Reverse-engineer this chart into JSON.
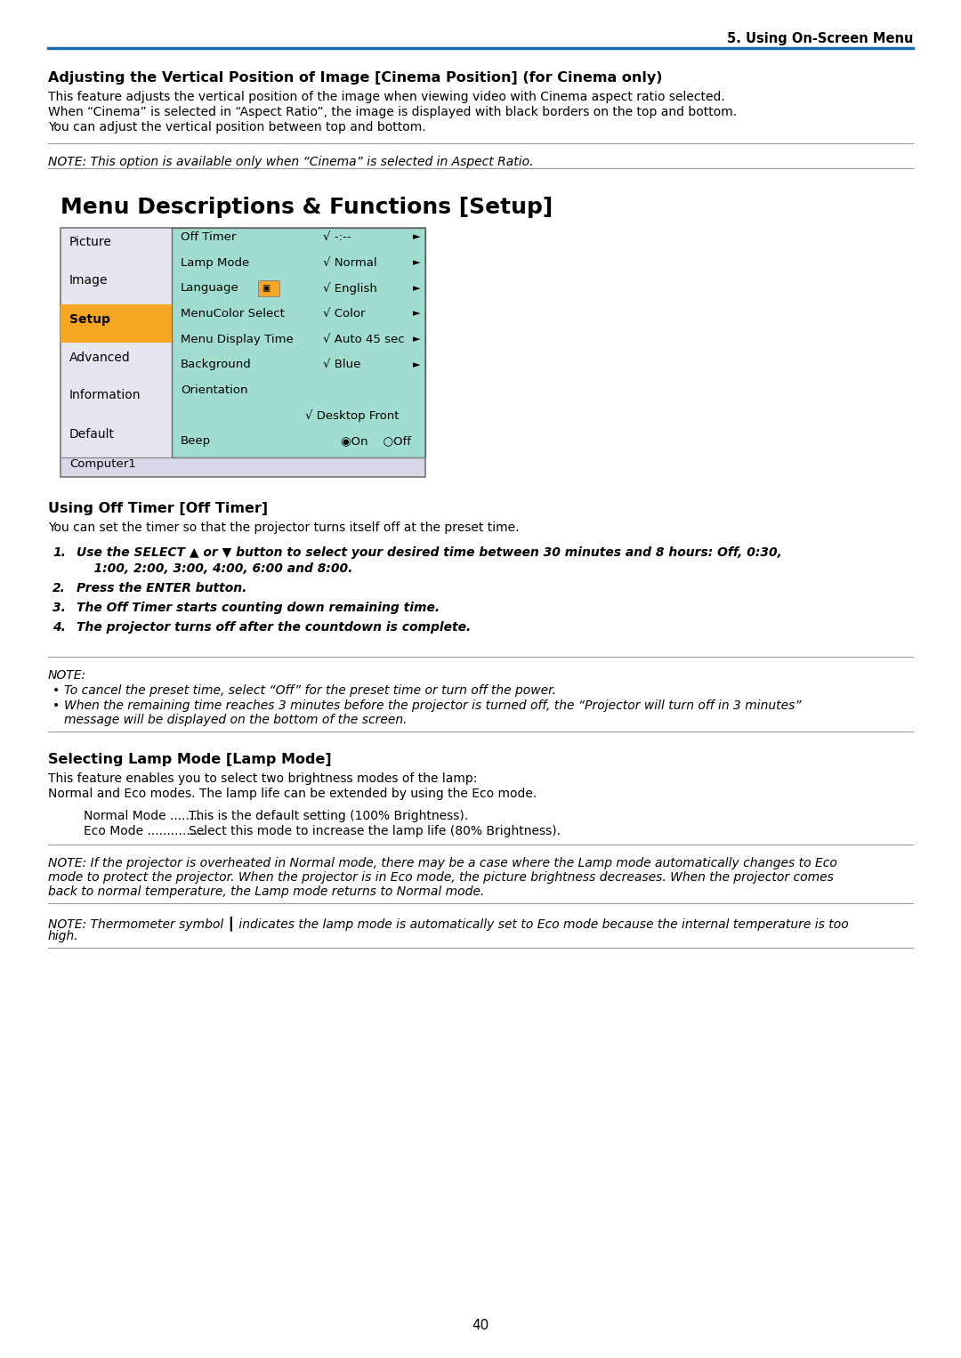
{
  "page_number": "40",
  "header_right": "5. Using On-Screen Menu",
  "header_line_color": "#1a6bb5",
  "bg_color": "#ffffff",
  "section1_title": "Adjusting the Vertical Position of Image [Cinema Position] (for Cinema only)",
  "section1_body_lines": [
    "This feature adjusts the vertical position of the image when viewing video with Cinema aspect ratio selected.",
    "When “Cinema” is selected in “Aspect Ratio”, the image is displayed with black borders on the top and bottom.",
    "You can adjust the vertical position between top and bottom."
  ],
  "note1_italic": "NOTE: This option is available only when “Cinema” is selected in Aspect Ratio.",
  "section2_title": "Menu Descriptions & Functions [Setup]",
  "menu_left_bg": "#e8e8f0",
  "menu_right_bg": "#a8e8d8",
  "menu_selected_bg": "#f5a623",
  "menu_border_color": "#888888",
  "menu_bottom_bg": "#d8d8e8",
  "menu_left_items": [
    "Picture",
    "Image",
    "Setup",
    "Advanced",
    "Information",
    "Default"
  ],
  "menu_selected_item": "Setup",
  "menu_right_items": [
    [
      "Off Timer",
      "√ -:--",
      true
    ],
    [
      "Lamp Mode",
      "√ Normal",
      true
    ],
    [
      "Language",
      "√ English",
      true
    ],
    [
      "MenuColor Select",
      "√ Color",
      true
    ],
    [
      "Menu Display Time",
      "√ Auto 45 sec",
      true
    ],
    [
      "Background",
      "√ Blue",
      true
    ],
    [
      "Orientation",
      "",
      false
    ],
    [
      "",
      "√ Desktop Front",
      true
    ],
    [
      "Beep",
      "◉On    ○Off",
      false
    ]
  ],
  "menu_bottom_label": "Computer1",
  "section3_title": "Using Off Timer [Off Timer]",
  "section3_body": "You can set the timer so that the projector turns itself off at the preset time.",
  "section3_steps": [
    "Use the SELECT ▲ or ▼ button to select your desired time between 30 minutes and 8 hours: Off, 0:30,",
    "    1:00, 2:00, 3:00, 4:00, 6:00 and 8:00.",
    "Press the ENTER button.",
    "The Off Timer starts counting down remaining time.",
    "The projector turns off after the countdown is complete."
  ],
  "note2_header": "NOTE:",
  "note2_bullet1": "To cancel the preset time, select “Off” for the preset time or turn off the power.",
  "note2_bullet2_lines": [
    "When the remaining time reaches 3 minutes before the projector is turned off, the “Projector will turn off in 3 minutes”",
    "message will be displayed on the bottom of the screen."
  ],
  "section4_title": "Selecting Lamp Mode [Lamp Mode]",
  "section4_body_lines": [
    "This feature enables you to select two brightness modes of the lamp:",
    "Normal and Eco modes. The lamp life can be extended by using the Eco mode."
  ],
  "section4_mode1_label": "Normal Mode ........",
  "section4_mode1_desc": "This is the default setting (100% Brightness).",
  "section4_mode2_label": "Eco Mode ...............",
  "section4_mode2_desc": "Select this mode to increase the lamp life (80% Brightness).",
  "note3_lines": [
    "NOTE: If the projector is overheated in Normal mode, there may be a case where the Lamp mode automatically changes to Eco",
    "mode to protect the projector. When the projector is in Eco mode, the picture brightness decreases. When the projector comes",
    "back to normal temperature, the Lamp mode returns to Normal mode."
  ],
  "note4_lines": [
    "NOTE: Thermometer symbol ┃ indicates the lamp mode is automatically set to Eco mode because the internal temperature is too",
    "high."
  ]
}
